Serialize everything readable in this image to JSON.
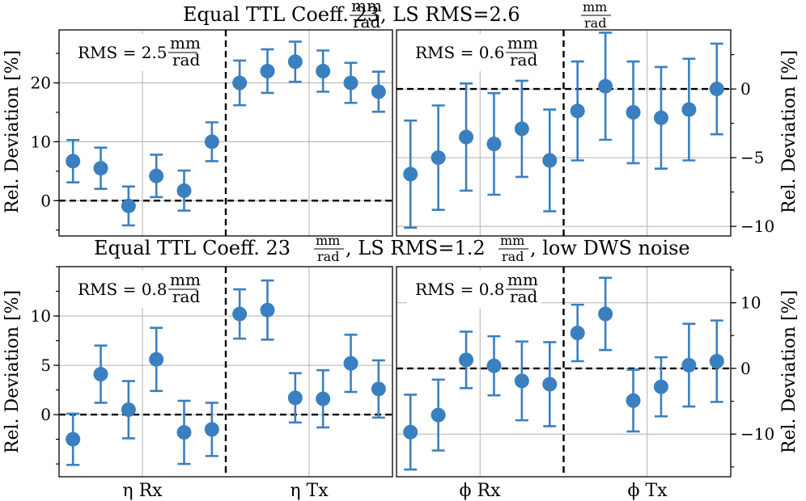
{
  "colors": {
    "series": "#3a7fbf",
    "grid": "#b0b0b0",
    "axis": "#000000"
  },
  "titles": {
    "top": {
      "prefix": "Equal TTL Coeff. 23",
      "frac_num": "mm",
      "frac_den": "rad",
      "middle": ", LS RMS=2.6",
      "suffix": ""
    },
    "bottom": {
      "prefix": "Equal TTL Coeff. 23",
      "frac_num": "mm",
      "frac_den": "rad",
      "middle": ", LS RMS=1.2",
      "suffix": ", low DWS noise"
    }
  },
  "ylabel": "Rel. Deviation [%]",
  "xlabels": {
    "eta_rx": "η Rx",
    "eta_tx": "η Tx",
    "phi_rx": "ϕ Rx",
    "phi_tx": "ϕ Tx"
  },
  "chart_data": [
    {
      "type": "errorbar",
      "name": "top-left (eta)",
      "rms_label": "RMS = 2.5",
      "rms_num": "mm",
      "rms_den": "rad",
      "groups": [
        "η Rx",
        "η Tx"
      ],
      "ylim": [
        -6,
        29
      ],
      "yticks": [
        0,
        10,
        20
      ],
      "minor_yticks": [
        -5,
        5,
        15,
        25
      ],
      "y_side": "left",
      "values": [
        6.7,
        5.5,
        -0.9,
        4.2,
        1.7,
        10.0,
        20.0,
        22.0,
        23.6,
        22.0,
        20.0,
        18.5
      ],
      "errors": [
        3.6,
        3.5,
        3.3,
        3.6,
        3.4,
        3.3,
        3.8,
        3.7,
        3.4,
        3.5,
        3.4,
        3.4
      ]
    },
    {
      "type": "errorbar",
      "name": "top-right (phi)",
      "rms_label": "RMS = 0.6",
      "rms_num": "mm",
      "rms_den": "rad",
      "groups": [
        "ϕ Rx",
        "ϕ Tx"
      ],
      "ylim": [
        -10.7,
        4.3
      ],
      "yticks": [
        -10,
        -5,
        0
      ],
      "minor_yticks": [],
      "y_side": "right",
      "values": [
        -6.2,
        -5.0,
        -3.5,
        -4.0,
        -2.9,
        -5.2,
        -1.6,
        0.2,
        -1.7,
        -2.1,
        -1.5,
        0.0
      ],
      "errors": [
        3.9,
        3.8,
        3.9,
        3.7,
        3.5,
        3.7,
        3.6,
        3.9,
        3.7,
        3.7,
        3.7,
        3.3
      ]
    },
    {
      "type": "errorbar",
      "name": "bottom-left (eta)",
      "rms_label": "RMS = 0.8",
      "rms_num": "mm",
      "rms_den": "rad",
      "groups": [
        "η Rx",
        "η Tx"
      ],
      "ylim": [
        -6.3,
        15.0
      ],
      "yticks": [
        0,
        5,
        10
      ],
      "minor_yticks": [],
      "y_side": "left",
      "values": [
        -2.5,
        4.1,
        0.5,
        5.6,
        -1.8,
        -1.5,
        10.2,
        10.6,
        1.7,
        1.6,
        5.2,
        2.6
      ],
      "errors": [
        2.6,
        2.9,
        2.9,
        3.2,
        3.2,
        2.7,
        2.5,
        3.0,
        2.5,
        2.9,
        2.9,
        2.9
      ]
    },
    {
      "type": "errorbar",
      "name": "bottom-right (phi)",
      "rms_label": "RMS = 0.8",
      "rms_num": "mm",
      "rms_den": "rad",
      "groups": [
        "ϕ Rx",
        "ϕ Tx"
      ],
      "ylim": [
        -16.5,
        15.5
      ],
      "yticks": [
        -10,
        0,
        10
      ],
      "minor_yticks": [],
      "y_side": "right",
      "values": [
        -9.7,
        -7.1,
        1.3,
        0.4,
        -1.9,
        -2.4,
        5.4,
        8.3,
        -4.9,
        -2.8,
        0.5,
        1.1
      ],
      "errors": [
        5.7,
        5.4,
        4.3,
        4.5,
        6.0,
        6.4,
        4.3,
        5.5,
        4.7,
        4.5,
        6.3,
        6.2
      ]
    }
  ]
}
